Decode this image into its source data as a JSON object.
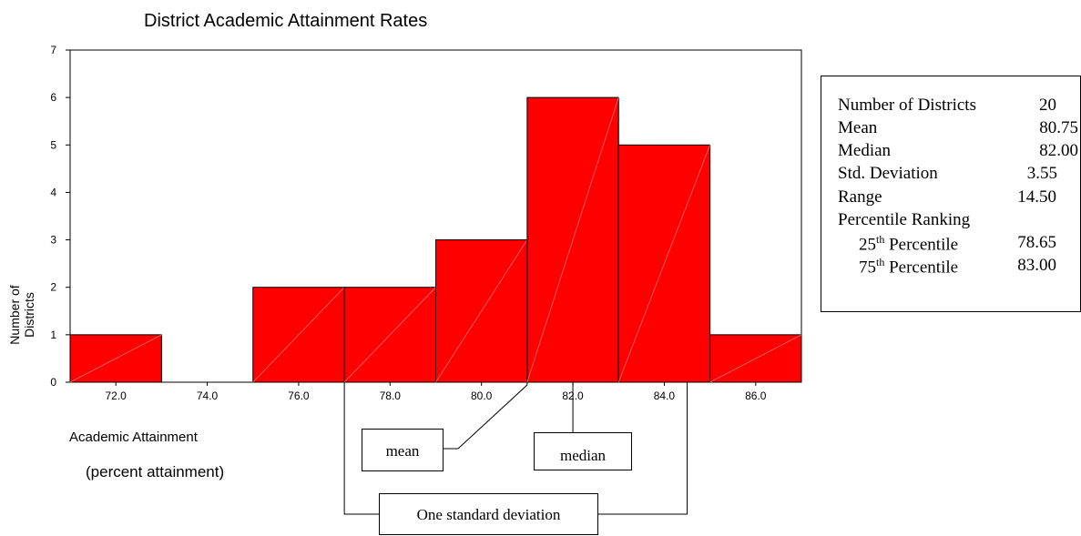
{
  "chart_data": {
    "type": "bar",
    "title": "District Academic Attainment Rates",
    "xlabel": "Academic Attainment",
    "xlabel_sub": "(percent attainment)",
    "ylabel": "Number of Districts",
    "bins": [
      {
        "center": 72.0,
        "count": 1
      },
      {
        "center": 74.0,
        "count": 0
      },
      {
        "center": 76.0,
        "count": 2
      },
      {
        "center": 78.0,
        "count": 2
      },
      {
        "center": 80.0,
        "count": 3
      },
      {
        "center": 82.0,
        "count": 6
      },
      {
        "center": 84.0,
        "count": 5
      },
      {
        "center": 86.0,
        "count": 1
      }
    ],
    "x_ticks": [
      "72.0",
      "74.0",
      "76.0",
      "78.0",
      "80.0",
      "82.0",
      "84.0",
      "86.0"
    ],
    "y_ticks": [
      "0",
      "1",
      "2",
      "3",
      "4",
      "5",
      "6",
      "7"
    ],
    "xlim": [
      71.0,
      87.0
    ],
    "ylim": [
      0,
      7
    ],
    "bar_color": "#ff0000",
    "annotations": {
      "mean": {
        "label": "mean",
        "x": 81.0
      },
      "median": {
        "label": "median",
        "x": 82.0
      },
      "std_dev": {
        "label": "One standard deviation",
        "x_start": 77.0,
        "x_end": 84.5
      }
    }
  },
  "stats": {
    "districts_label": "Number of Districts",
    "districts_value": "20",
    "mean_label": "Mean",
    "mean_value": "80.75",
    "median_label": "Median",
    "median_value": "82.00",
    "std_label": "Std. Deviation",
    "std_value": "3.55",
    "range_label": "Range",
    "range_value": "14.50",
    "pr_label": "Percentile Ranking",
    "p25_num": "25",
    "p25_sup": "th",
    "p25_label": " Percentile",
    "p25_value": "78.65",
    "p75_num": "75",
    "p75_sup": "th",
    "p75_label": " Percentile",
    "p75_value": "83.00"
  }
}
